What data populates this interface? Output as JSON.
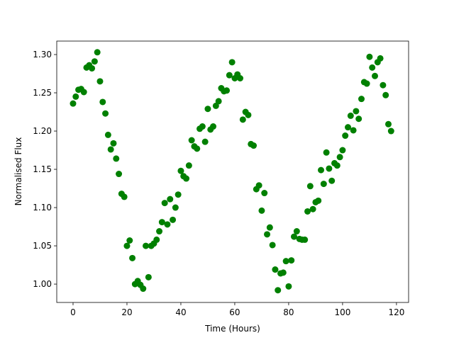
{
  "chart_data": {
    "type": "scatter",
    "xlabel": "Time (Hours)",
    "ylabel": "Normalised Flux",
    "color": "#008000",
    "x": [
      0,
      1,
      2,
      3,
      4,
      5,
      6,
      7,
      8,
      9,
      10,
      11,
      12,
      13,
      14,
      15,
      16,
      17,
      18,
      19,
      20,
      21,
      22,
      23,
      24,
      25,
      26,
      27,
      28,
      29,
      30,
      31,
      32,
      33,
      34,
      35,
      36,
      37,
      38,
      39,
      40,
      41,
      42,
      43,
      44,
      45,
      46,
      47,
      48,
      49,
      50,
      51,
      52,
      53,
      54,
      55,
      56,
      57,
      58,
      59,
      60,
      61,
      62,
      63,
      64,
      65,
      66,
      67,
      68,
      69,
      70,
      71,
      72,
      73,
      74,
      75,
      76,
      77,
      78,
      79,
      80,
      81,
      82,
      83,
      84,
      85,
      86,
      87,
      88,
      89,
      90,
      91,
      92,
      93,
      94,
      95,
      96,
      97,
      98,
      99,
      100,
      101,
      102,
      103,
      104,
      105,
      106,
      107,
      108,
      109,
      110,
      111,
      112,
      113,
      114,
      115,
      116,
      117,
      118
    ],
    "y": [
      1.236,
      1.245,
      1.254,
      1.255,
      1.251,
      1.283,
      1.286,
      1.282,
      1.291,
      1.303,
      1.265,
      1.238,
      1.223,
      1.195,
      1.176,
      1.184,
      1.164,
      1.144,
      1.118,
      1.114,
      1.05,
      1.057,
      1.034,
      1.0,
      1.004,
      0.999,
      0.994,
      1.05,
      1.009,
      1.05,
      1.053,
      1.058,
      1.069,
      1.081,
      1.106,
      1.078,
      1.111,
      1.084,
      1.1,
      1.117,
      1.148,
      1.141,
      1.138,
      1.155,
      1.188,
      1.18,
      1.177,
      1.203,
      1.206,
      1.186,
      1.229,
      1.202,
      1.206,
      1.233,
      1.239,
      1.256,
      1.252,
      1.253,
      1.273,
      1.29,
      1.269,
      1.274,
      1.269,
      1.215,
      1.225,
      1.221,
      1.183,
      1.181,
      1.124,
      1.129,
      1.096,
      1.119,
      1.065,
      1.074,
      1.051,
      1.019,
      0.992,
      1.014,
      1.015,
      1.03,
      0.997,
      1.031,
      1.062,
      1.069,
      1.059,
      1.058,
      1.058,
      1.095,
      1.128,
      1.098,
      1.107,
      1.109,
      1.149,
      1.131,
      1.172,
      1.151,
      1.135,
      1.158,
      1.155,
      1.166,
      1.175,
      1.194,
      1.205,
      1.22,
      1.201,
      1.226,
      1.216,
      1.242,
      1.264,
      1.262,
      1.297,
      1.283,
      1.272,
      1.29,
      1.295,
      1.26,
      1.247,
      1.209,
      1.2
    ],
    "xlim": [
      -6.05,
      124.5
    ],
    "ylim": [
      0.976,
      1.3176
    ],
    "xticks": [
      0,
      20,
      40,
      60,
      80,
      100,
      120
    ],
    "yticks": [
      {
        "value": 1.0,
        "label": "1.00"
      },
      1.05,
      {
        "value": 1.1,
        "label": "1.10"
      },
      1.15,
      {
        "value": 1.2,
        "label": "1.20"
      },
      1.25,
      {
        "value": 1.3,
        "label": "1.30"
      }
    ]
  }
}
